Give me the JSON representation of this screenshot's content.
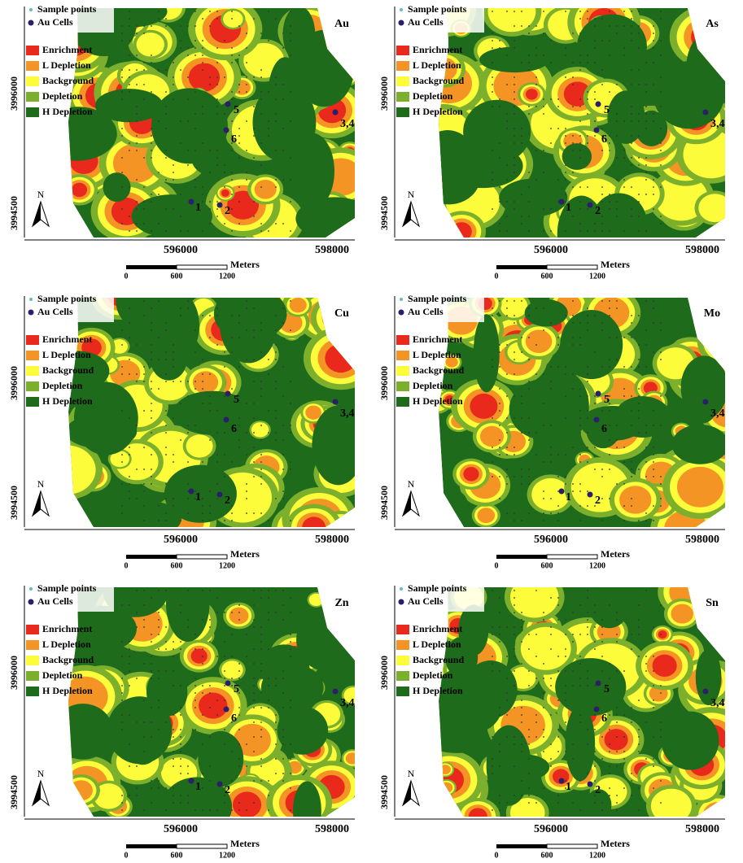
{
  "legend": {
    "sample_points": "Sample points",
    "au_cells": "Au Cells",
    "classes": [
      "Enrichment",
      "L Depletion",
      "Background",
      "Depletion",
      "H Depletion"
    ]
  },
  "axes": {
    "y_labels": [
      "3996000",
      "3994500"
    ],
    "x_labels": [
      "596000",
      "598000"
    ],
    "north": "N"
  },
  "scale_bar": {
    "labels": [
      "0",
      "600",
      "1200"
    ],
    "unit": "Meters"
  },
  "cells": [
    "1",
    "2",
    "3,4",
    "5",
    "6"
  ],
  "panels": [
    "Au",
    "As",
    "Cu",
    "Mo",
    "Zn",
    "Sn"
  ]
}
